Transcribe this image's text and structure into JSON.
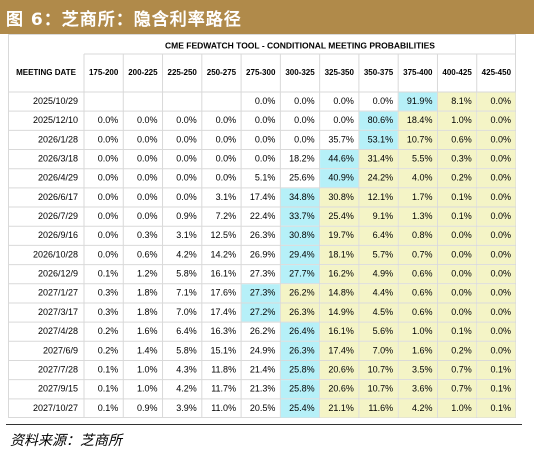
{
  "header": {
    "title": "图 6：芝商所：隐含利率路径"
  },
  "source": "资料来源：芝商所",
  "colors": {
    "banner": "#b08a4a",
    "highlight_blue": "#b6f0f8",
    "highlight_yellow": "#f4f4c6",
    "grid": "#d9d9d9"
  },
  "chart_data": {
    "type": "table",
    "title": "CME FEDWATCH TOOL - CONDITIONAL MEETING PROBABILITIES",
    "row_header_label": "MEETING DATE",
    "columns": [
      "175-200",
      "200-225",
      "225-250",
      "250-275",
      "275-300",
      "300-325",
      "325-350",
      "350-375",
      "375-400",
      "400-425",
      "425-450"
    ],
    "rows": [
      {
        "date": "2025/10/29",
        "values": [
          "",
          "",
          "",
          "",
          "0.0%",
          "0.0%",
          "0.0%",
          "0.0%",
          "91.9%",
          "8.1%",
          "0.0%"
        ],
        "highlight_col": 8
      },
      {
        "date": "2025/12/10",
        "values": [
          "0.0%",
          "0.0%",
          "0.0%",
          "0.0%",
          "0.0%",
          "0.0%",
          "0.0%",
          "80.6%",
          "18.4%",
          "1.0%",
          "0.0%"
        ],
        "highlight_col": 7
      },
      {
        "date": "2026/1/28",
        "values": [
          "0.0%",
          "0.0%",
          "0.0%",
          "0.0%",
          "0.0%",
          "0.0%",
          "35.7%",
          "53.1%",
          "10.7%",
          "0.6%",
          "0.0%"
        ],
        "highlight_col": 7
      },
      {
        "date": "2026/3/18",
        "values": [
          "0.0%",
          "0.0%",
          "0.0%",
          "0.0%",
          "0.0%",
          "18.2%",
          "44.6%",
          "31.4%",
          "5.5%",
          "0.3%",
          "0.0%"
        ],
        "highlight_col": 6
      },
      {
        "date": "2026/4/29",
        "values": [
          "0.0%",
          "0.0%",
          "0.0%",
          "0.0%",
          "5.1%",
          "25.6%",
          "40.9%",
          "24.2%",
          "4.0%",
          "0.2%",
          "0.0%"
        ],
        "highlight_col": 6
      },
      {
        "date": "2026/6/17",
        "values": [
          "0.0%",
          "0.0%",
          "0.0%",
          "3.1%",
          "17.4%",
          "34.8%",
          "30.8%",
          "12.1%",
          "1.7%",
          "0.1%",
          "0.0%"
        ],
        "highlight_col": 5
      },
      {
        "date": "2026/7/29",
        "values": [
          "0.0%",
          "0.0%",
          "0.9%",
          "7.2%",
          "22.4%",
          "33.7%",
          "25.4%",
          "9.1%",
          "1.3%",
          "0.1%",
          "0.0%"
        ],
        "highlight_col": 5
      },
      {
        "date": "2026/9/16",
        "values": [
          "0.0%",
          "0.3%",
          "3.1%",
          "12.5%",
          "26.3%",
          "30.8%",
          "19.7%",
          "6.4%",
          "0.8%",
          "0.0%",
          "0.0%"
        ],
        "highlight_col": 5
      },
      {
        "date": "2026/10/28",
        "values": [
          "0.0%",
          "0.6%",
          "4.2%",
          "14.2%",
          "26.9%",
          "29.4%",
          "18.1%",
          "5.7%",
          "0.7%",
          "0.0%",
          "0.0%"
        ],
        "highlight_col": 5
      },
      {
        "date": "2026/12/9",
        "values": [
          "0.1%",
          "1.2%",
          "5.8%",
          "16.1%",
          "27.3%",
          "27.7%",
          "16.2%",
          "4.9%",
          "0.6%",
          "0.0%",
          "0.0%"
        ],
        "highlight_col": 5
      },
      {
        "date": "2027/1/27",
        "values": [
          "0.3%",
          "1.8%",
          "7.1%",
          "17.6%",
          "27.3%",
          "26.2%",
          "14.8%",
          "4.4%",
          "0.6%",
          "0.0%",
          "0.0%"
        ],
        "highlight_col": 4
      },
      {
        "date": "2027/3/17",
        "values": [
          "0.3%",
          "1.8%",
          "7.0%",
          "17.4%",
          "27.2%",
          "26.3%",
          "14.9%",
          "4.5%",
          "0.6%",
          "0.0%",
          "0.0%"
        ],
        "highlight_col": 4
      },
      {
        "date": "2027/4/28",
        "values": [
          "0.2%",
          "1.6%",
          "6.4%",
          "16.3%",
          "26.2%",
          "26.4%",
          "16.1%",
          "5.6%",
          "1.0%",
          "0.1%",
          "0.0%"
        ],
        "highlight_col": 5
      },
      {
        "date": "2027/6/9",
        "values": [
          "0.2%",
          "1.4%",
          "5.8%",
          "15.1%",
          "24.9%",
          "26.3%",
          "17.4%",
          "7.0%",
          "1.6%",
          "0.2%",
          "0.0%"
        ],
        "highlight_col": 5
      },
      {
        "date": "2027/7/28",
        "values": [
          "0.1%",
          "1.0%",
          "4.3%",
          "11.8%",
          "21.4%",
          "25.8%",
          "20.6%",
          "10.7%",
          "3.5%",
          "0.7%",
          "0.1%"
        ],
        "highlight_col": 5
      },
      {
        "date": "2027/9/15",
        "values": [
          "0.1%",
          "1.0%",
          "4.2%",
          "11.7%",
          "21.3%",
          "25.8%",
          "20.6%",
          "10.7%",
          "3.6%",
          "0.7%",
          "0.1%"
        ],
        "highlight_col": 5
      },
      {
        "date": "2027/10/27",
        "values": [
          "0.1%",
          "0.9%",
          "3.9%",
          "11.0%",
          "20.5%",
          "25.4%",
          "21.1%",
          "11.6%",
          "4.2%",
          "1.0%",
          "0.1%"
        ],
        "highlight_col": 5
      }
    ]
  }
}
